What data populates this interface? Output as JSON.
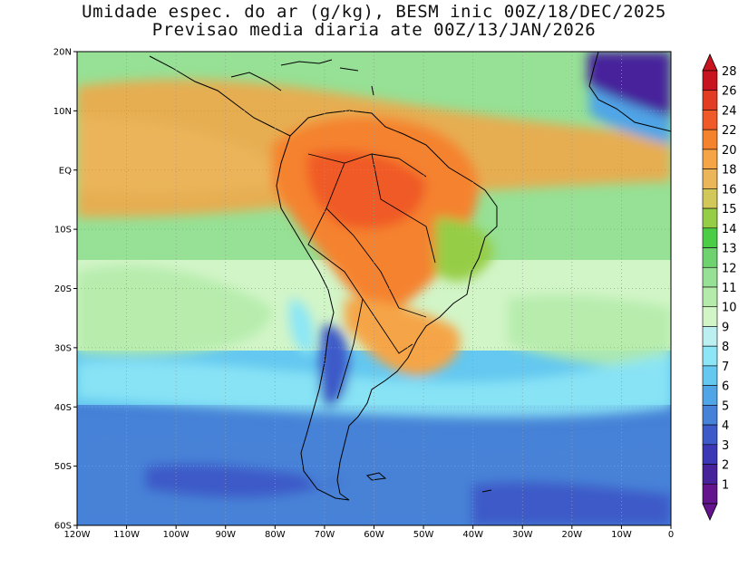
{
  "title": {
    "line1": "Umidade espec. do ar (g/kg), BESM inic 00Z/18/DEC/2025",
    "line2": "Previsao media diaria ate 00Z/13/JAN/2026"
  },
  "map": {
    "lon_range": [
      -120,
      0
    ],
    "lat_range": [
      -60,
      20
    ],
    "lon_ticks": [
      {
        "value": -120,
        "label": "120W"
      },
      {
        "value": -110,
        "label": "110W"
      },
      {
        "value": -100,
        "label": "100W"
      },
      {
        "value": -90,
        "label": "90W"
      },
      {
        "value": -80,
        "label": "80W"
      },
      {
        "value": -70,
        "label": "70W"
      },
      {
        "value": -60,
        "label": "60W"
      },
      {
        "value": -50,
        "label": "50W"
      },
      {
        "value": -40,
        "label": "40W"
      },
      {
        "value": -30,
        "label": "30W"
      },
      {
        "value": -20,
        "label": "20W"
      },
      {
        "value": -10,
        "label": "10W"
      },
      {
        "value": 0,
        "label": "0"
      }
    ],
    "lat_ticks": [
      {
        "value": 20,
        "label": "20N"
      },
      {
        "value": 10,
        "label": "10N"
      },
      {
        "value": 0,
        "label": "EQ"
      },
      {
        "value": -10,
        "label": "10S"
      },
      {
        "value": -20,
        "label": "20S"
      },
      {
        "value": -30,
        "label": "30S"
      },
      {
        "value": -40,
        "label": "40S"
      },
      {
        "value": -50,
        "label": "50S"
      },
      {
        "value": -60,
        "label": "60S"
      }
    ],
    "grid": "dotted"
  },
  "colorbar": {
    "levels": [
      {
        "label": "28",
        "color": "#c8141e"
      },
      {
        "label": "26",
        "color": "#e23c22"
      },
      {
        "label": "24",
        "color": "#f05a28"
      },
      {
        "label": "22",
        "color": "#f5822d"
      },
      {
        "label": "20",
        "color": "#f5a546"
      },
      {
        "label": "18",
        "color": "#ebb55a"
      },
      {
        "label": "16",
        "color": "#d2c85a"
      },
      {
        "label": "15",
        "color": "#96cd46"
      },
      {
        "label": "14",
        "color": "#4bcd46"
      },
      {
        "label": "13",
        "color": "#6ed26e"
      },
      {
        "label": "12",
        "color": "#96e196"
      },
      {
        "label": "11",
        "color": "#b4ebaa"
      },
      {
        "label": "10",
        "color": "#d2f5c8"
      },
      {
        "label": "9",
        "color": "#bcf0f0"
      },
      {
        "label": "8",
        "color": "#8ce6f5"
      },
      {
        "label": "7",
        "color": "#64c8f0"
      },
      {
        "label": "6",
        "color": "#50a5e6"
      },
      {
        "label": "5",
        "color": "#4682d7"
      },
      {
        "label": "4",
        "color": "#3c5ac8"
      },
      {
        "label": "3",
        "color": "#3c37b4"
      },
      {
        "label": "2",
        "color": "#46239b"
      },
      {
        "label": "1",
        "color": "#64148c"
      }
    ]
  },
  "colors": {
    "ocean_tropical": "#96e196",
    "ocean_subtropical": "#d2f5c8",
    "ocean_midlat": "#64c8f0",
    "ocean_south": "#4682d7",
    "amazon": "#f5822d",
    "andes": "#50a5e6",
    "africa_sahara": "#46239b"
  }
}
